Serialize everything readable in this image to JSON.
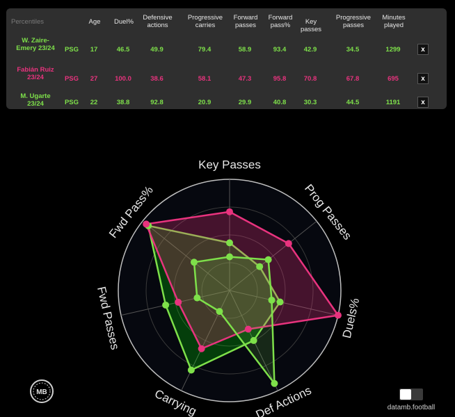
{
  "table": {
    "headers": [
      "Percentiles",
      "Age",
      "Duel%",
      "Defensive actions",
      "Progressive carries",
      "Forward passes",
      "Forward pass%",
      "Key passes",
      "Progressive passes",
      "Minutes played"
    ],
    "rows": [
      {
        "player": "W. Zaire-Emery 23/24",
        "team": "PSG",
        "age": "17",
        "values": [
          "46.5",
          "49.9",
          "79.4",
          "58.9",
          "93.4",
          "42.9",
          "34.5",
          "1299"
        ],
        "color": "#7ee04a",
        "close": "x"
      },
      {
        "player": "Fabián Ruiz 23/24",
        "team": "PSG",
        "age": "27",
        "values": [
          "100.0",
          "38.6",
          "58.1",
          "47.3",
          "95.8",
          "70.8",
          "67.8",
          "695"
        ],
        "color": "#e8337e",
        "close": "x"
      },
      {
        "player": "M. Ugarte 23/24",
        "team": "PSG",
        "age": "22",
        "values": [
          "38.8",
          "92.8",
          "20.9",
          "29.9",
          "40.8",
          "30.3",
          "44.5",
          "1191"
        ],
        "color": "#7ee04a",
        "close": "x"
      }
    ]
  },
  "chart_data": {
    "type": "radar",
    "axes": [
      "Key Passes",
      "Prog Passes",
      "Duels%",
      "Def Actions",
      "Carrying",
      "Fwd Passes",
      "Fwd Pass%"
    ],
    "range": [
      0,
      100
    ],
    "series": [
      {
        "name": "W. Zaire-Emery 23/24",
        "color": "#7ee04a",
        "values": [
          42.9,
          34.5,
          46.5,
          49.9,
          79.4,
          58.9,
          93.4
        ]
      },
      {
        "name": "Fabián Ruiz 23/24",
        "color": "#e8337e",
        "values": [
          70.8,
          67.8,
          100.0,
          38.6,
          58.1,
          47.3,
          95.8
        ]
      },
      {
        "name": "M. Ugarte 23/24",
        "color": "#7ee04a",
        "values": [
          30.3,
          44.5,
          38.8,
          92.8,
          20.9,
          29.9,
          40.8
        ]
      }
    ]
  },
  "logo_text": "MB",
  "footer": "datamb.football",
  "colors": {
    "green": "#7ee04a",
    "pink": "#e8337e",
    "panel": "#2f2f2f",
    "background": "#000000"
  }
}
